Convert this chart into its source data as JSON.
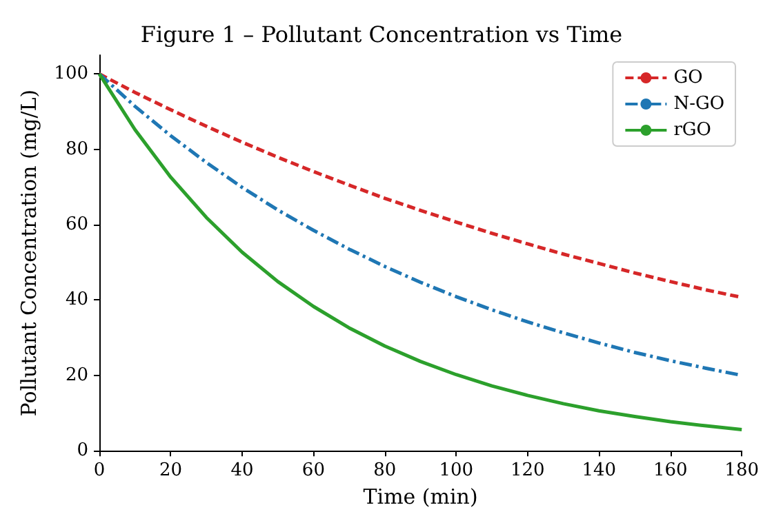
{
  "chart_data": {
    "type": "line",
    "title": "Figure 1 – Pollutant Concentration vs Time",
    "xlabel": "Time (min)",
    "ylabel": "Pollutant Concentration (mg/L)",
    "x": [
      0,
      10,
      20,
      30,
      40,
      50,
      60,
      70,
      80,
      90,
      100,
      110,
      120,
      130,
      140,
      150,
      160,
      170,
      180
    ],
    "series": [
      {
        "name": "GO",
        "color": "#d62728",
        "line_style": "dashed",
        "values": [
          100,
          95.1,
          90.5,
          86.1,
          81.9,
          77.9,
          74.1,
          70.5,
          67.0,
          63.8,
          60.7,
          57.7,
          54.9,
          52.2,
          49.7,
          47.2,
          44.9,
          42.7,
          40.7
        ]
      },
      {
        "name": "N-GO",
        "color": "#1f77b4",
        "line_style": "dashdot",
        "values": [
          100,
          91.4,
          83.6,
          76.5,
          69.9,
          63.9,
          58.5,
          53.5,
          48.9,
          44.7,
          40.9,
          37.4,
          34.2,
          31.3,
          28.6,
          26.1,
          23.9,
          21.9,
          20.0
        ]
      },
      {
        "name": "rGO",
        "color": "#2ca02c",
        "line_style": "solid",
        "values": [
          100,
          85.2,
          72.6,
          61.9,
          52.7,
          44.9,
          38.3,
          32.6,
          27.8,
          23.7,
          20.2,
          17.2,
          14.7,
          12.5,
          10.6,
          9.1,
          7.7,
          6.6,
          5.6
        ]
      }
    ],
    "xlim": [
      0,
      180
    ],
    "xticks": [
      0,
      20,
      40,
      60,
      80,
      100,
      120,
      140,
      160,
      180
    ],
    "ylim": [
      0,
      105
    ],
    "yticks": [
      0,
      20,
      40,
      60,
      80,
      100
    ],
    "grid": false,
    "legend": "top right",
    "marker": "none"
  }
}
